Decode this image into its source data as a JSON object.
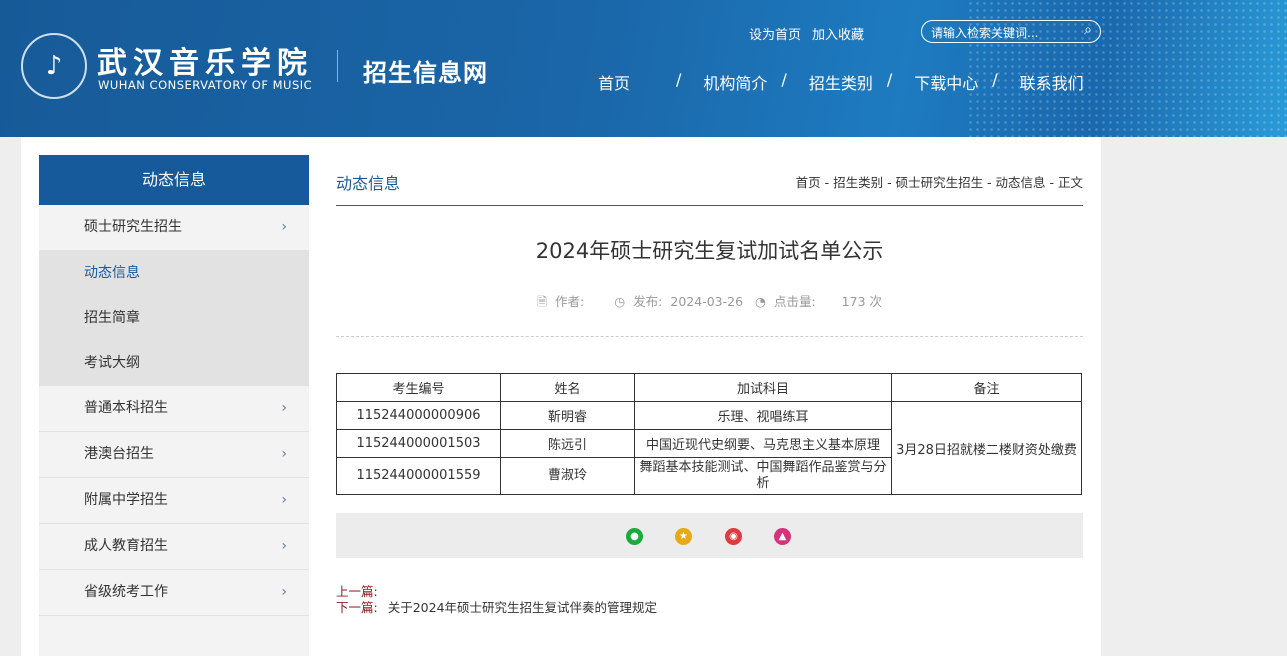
{
  "header": {
    "logo_cn": "武汉音乐学院",
    "logo_en": "WUHAN CONSERVATORY OF MUSIC",
    "site_name": "招生信息网",
    "set_home": "设为首页",
    "favorite": "加入收藏",
    "search_placeholder": "请输入检索关键词...",
    "nav": [
      "首页",
      "机构简介",
      "招生类别",
      "下载中心",
      "联系我们"
    ],
    "nav_sep": "/"
  },
  "sidebar": {
    "title": "动态信息",
    "items": [
      {
        "label": "硕士研究生招生",
        "children": [
          "动态信息",
          "招生简章",
          "考试大纲"
        ],
        "active_child": "动态信息"
      },
      {
        "label": "普通本科招生"
      },
      {
        "label": "港澳台招生"
      },
      {
        "label": "附属中学招生"
      },
      {
        "label": "成人教育招生"
      },
      {
        "label": "省级统考工作"
      }
    ]
  },
  "main": {
    "section_title": "动态信息",
    "breadcrumb": "首页 - 招生类别 - 硕士研究生招生 - 动态信息 - 正文",
    "article_title": "2024年硕士研究生复试加试名单公示",
    "meta": {
      "author_label": "作者:",
      "author": "",
      "published_label": "发布:",
      "published": "2024-03-26",
      "views_label": "点击量:",
      "views": "173 次"
    },
    "table": {
      "headers": [
        "考生编号",
        "姓名",
        "加试科目",
        "备注"
      ],
      "rows": [
        [
          "115244000000906",
          "靳明睿",
          "乐理、视唱练耳"
        ],
        [
          "115244000001503",
          "陈远引",
          "中国近现代史纲要、马克思主义基本原理"
        ],
        [
          "115244000001559",
          "曹淑玲",
          "舞蹈基本技能测试、中国舞蹈作品鉴赏与分析"
        ]
      ],
      "note": "3月28日招就楼二楼财资处缴费"
    },
    "share": [
      {
        "icon": "wechat-icon",
        "color": "#1aab3c"
      },
      {
        "icon": "qzone-star-icon",
        "color": "#e6a917"
      },
      {
        "icon": "weibo-icon",
        "color": "#e0393e"
      },
      {
        "icon": "more-share-icon",
        "color": "#d6337a"
      }
    ],
    "prev_label": "上一篇:",
    "prev": "",
    "next_label": "下一篇:",
    "next": "关于2024年硕士研究生招生复试伴奏的管理规定"
  }
}
